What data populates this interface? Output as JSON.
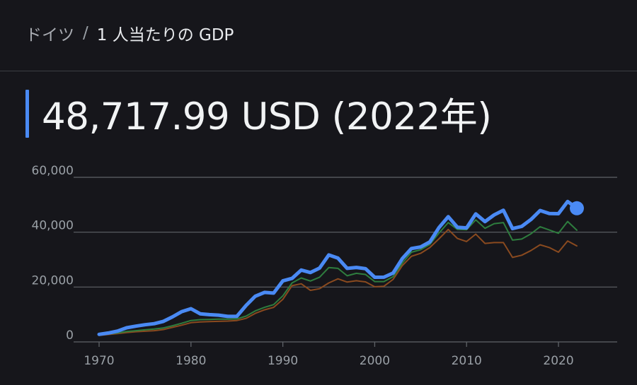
{
  "breadcrumb": {
    "parent": "ドイツ",
    "separator": "/",
    "current": "1 人当たりの GDP"
  },
  "headline": {
    "value": "48,717.99 USD (2022年)"
  },
  "colors": {
    "background": "#16161b",
    "accent": "#4a8af4",
    "series_primary": "#4a8af4",
    "series_green": "#2e7d3e",
    "series_brown": "#8a4a1f",
    "gridline": "#5f6368"
  },
  "chart_data": {
    "type": "line",
    "ylim": [
      0,
      60000
    ],
    "xlim": [
      1970,
      2022
    ],
    "yticks": [
      {
        "value": 0,
        "label": "0"
      },
      {
        "value": 20000,
        "label": "20,000"
      },
      {
        "value": 40000,
        "label": "40,000"
      },
      {
        "value": 60000,
        "label": "60,000"
      }
    ],
    "xticks": [
      {
        "value": 1970,
        "label": "1970"
      },
      {
        "value": 1980,
        "label": "1980"
      },
      {
        "value": 1990,
        "label": "1990"
      },
      {
        "value": 2000,
        "label": "2000"
      },
      {
        "value": 2010,
        "label": "2010"
      },
      {
        "value": 2020,
        "label": "2020"
      }
    ],
    "grid": true,
    "x": [
      1970,
      1971,
      1972,
      1973,
      1974,
      1975,
      1976,
      1977,
      1978,
      1979,
      1980,
      1981,
      1982,
      1983,
      1984,
      1985,
      1986,
      1987,
      1988,
      1989,
      1990,
      1991,
      1992,
      1993,
      1994,
      1995,
      1996,
      1997,
      1998,
      1999,
      2000,
      2001,
      2002,
      2003,
      2004,
      2005,
      2006,
      2007,
      2008,
      2009,
      2010,
      2011,
      2012,
      2013,
      2014,
      2015,
      2016,
      2017,
      2018,
      2019,
      2020,
      2021,
      2022
    ],
    "series": [
      {
        "color": "#8a4a1f",
        "values": [
          2400,
          2700,
          3000,
          3400,
          3700,
          3900,
          4100,
          4500,
          5300,
          6100,
          7000,
          7300,
          7400,
          7500,
          7600,
          7800,
          8600,
          10400,
          11700,
          12600,
          15500,
          20500,
          21200,
          18800,
          19400,
          21500,
          23000,
          21800,
          22300,
          21900,
          20100,
          20300,
          22800,
          27800,
          31200,
          32300,
          34400,
          37600,
          41000,
          37700,
          36600,
          39300,
          35900,
          36200,
          36200,
          30800,
          31600,
          33300,
          35400,
          34400,
          32700,
          36800,
          35000
        ]
      },
      {
        "color": "#2e7d3e",
        "values": [
          2600,
          2900,
          3300,
          3800,
          4100,
          4400,
          4700,
          5100,
          5900,
          6800,
          7800,
          8100,
          8200,
          8300,
          8300,
          8400,
          9400,
          11300,
          12600,
          13600,
          16800,
          21500,
          23300,
          22200,
          23600,
          27100,
          26800,
          24100,
          25000,
          24600,
          22000,
          22000,
          23800,
          28700,
          32700,
          33600,
          35500,
          39700,
          43500,
          41000,
          40900,
          44500,
          41400,
          43100,
          43500,
          37100,
          37500,
          39400,
          42000,
          40800,
          39600,
          43900,
          40700
        ]
      },
      {
        "color": "#4a8af4",
        "values": [
          2750,
          3250,
          3950,
          5150,
          5750,
          6250,
          6650,
          7500,
          9150,
          11050,
          12100,
          10250,
          9950,
          9750,
          9300,
          9350,
          13300,
          16650,
          18050,
          17800,
          22250,
          23150,
          26200,
          25300,
          26900,
          31700,
          30550,
          26800,
          27150,
          26700,
          23550,
          23600,
          25100,
          30350,
          34050,
          34600,
          36450,
          41700,
          45650,
          41800,
          41550,
          46650,
          43850,
          46300,
          48000,
          41300,
          42100,
          44600,
          47900,
          46800,
          46750,
          51200,
          48718
        ]
      }
    ],
    "highlight": {
      "x": 2022,
      "y": 48718
    }
  }
}
